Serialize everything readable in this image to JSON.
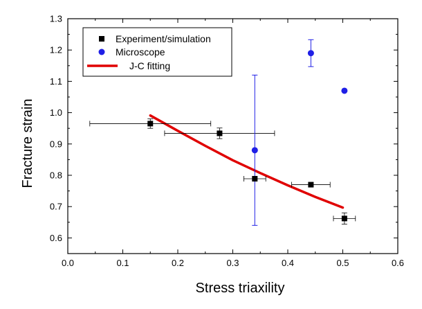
{
  "chart_data": {
    "type": "scatter",
    "xlabel": "Stress triaxility",
    "ylabel": "Fracture strain",
    "xlim": [
      0.0,
      0.6
    ],
    "ylim": [
      0.55,
      1.3
    ],
    "x_ticks": [
      0.0,
      0.1,
      0.2,
      0.3,
      0.4,
      0.5,
      0.6
    ],
    "x_tick_labels": [
      "0.0",
      "0.1",
      "0.2",
      "0.3",
      "0.4",
      "0.5",
      "0.6"
    ],
    "y_ticks": [
      0.6,
      0.7,
      0.8,
      0.9,
      1.0,
      1.1,
      1.2,
      1.3
    ],
    "y_tick_labels": [
      "0.6",
      "0.7",
      "0.8",
      "0.9",
      "1.0",
      "1.1",
      "1.2",
      "1.3"
    ],
    "grid": false,
    "legend_position": "top-left",
    "series": [
      {
        "name": "Experiment/simulation",
        "marker": "square",
        "color": "#000000",
        "points": [
          {
            "x": 0.15,
            "y": 0.965,
            "y_err": 0.015,
            "x_err_low": 0.11,
            "x_err_high": 0.11
          },
          {
            "x": 0.276,
            "y": 0.934,
            "y_err": 0.017,
            "x_err_low": 0.1,
            "x_err_high": 0.1
          },
          {
            "x": 0.34,
            "y": 0.789,
            "y_err": 0.0,
            "x_err_low": 0.02,
            "x_err_high": 0.02
          },
          {
            "x": 0.442,
            "y": 0.77,
            "y_err": 0.0,
            "x_err_low": 0.035,
            "x_err_high": 0.035
          },
          {
            "x": 0.503,
            "y": 0.662,
            "y_err": 0.018,
            "x_err_low": 0.02,
            "x_err_high": 0.02
          }
        ]
      },
      {
        "name": "Microscope",
        "marker": "circle",
        "color": "#1f1fe6",
        "points": [
          {
            "x": 0.34,
            "y": 0.88,
            "y_err": 0.24
          },
          {
            "x": 0.442,
            "y": 1.19,
            "y_err": 0.043
          },
          {
            "x": 0.503,
            "y": 1.07,
            "y_err": 0.0
          }
        ]
      },
      {
        "name": "J-C fitting",
        "marker": "line",
        "color": "#e00000",
        "x": [
          0.15,
          0.2,
          0.25,
          0.3,
          0.35,
          0.4,
          0.45,
          0.5
        ],
        "y": [
          0.991,
          0.942,
          0.894,
          0.848,
          0.807,
          0.768,
          0.731,
          0.697
        ]
      }
    ]
  }
}
